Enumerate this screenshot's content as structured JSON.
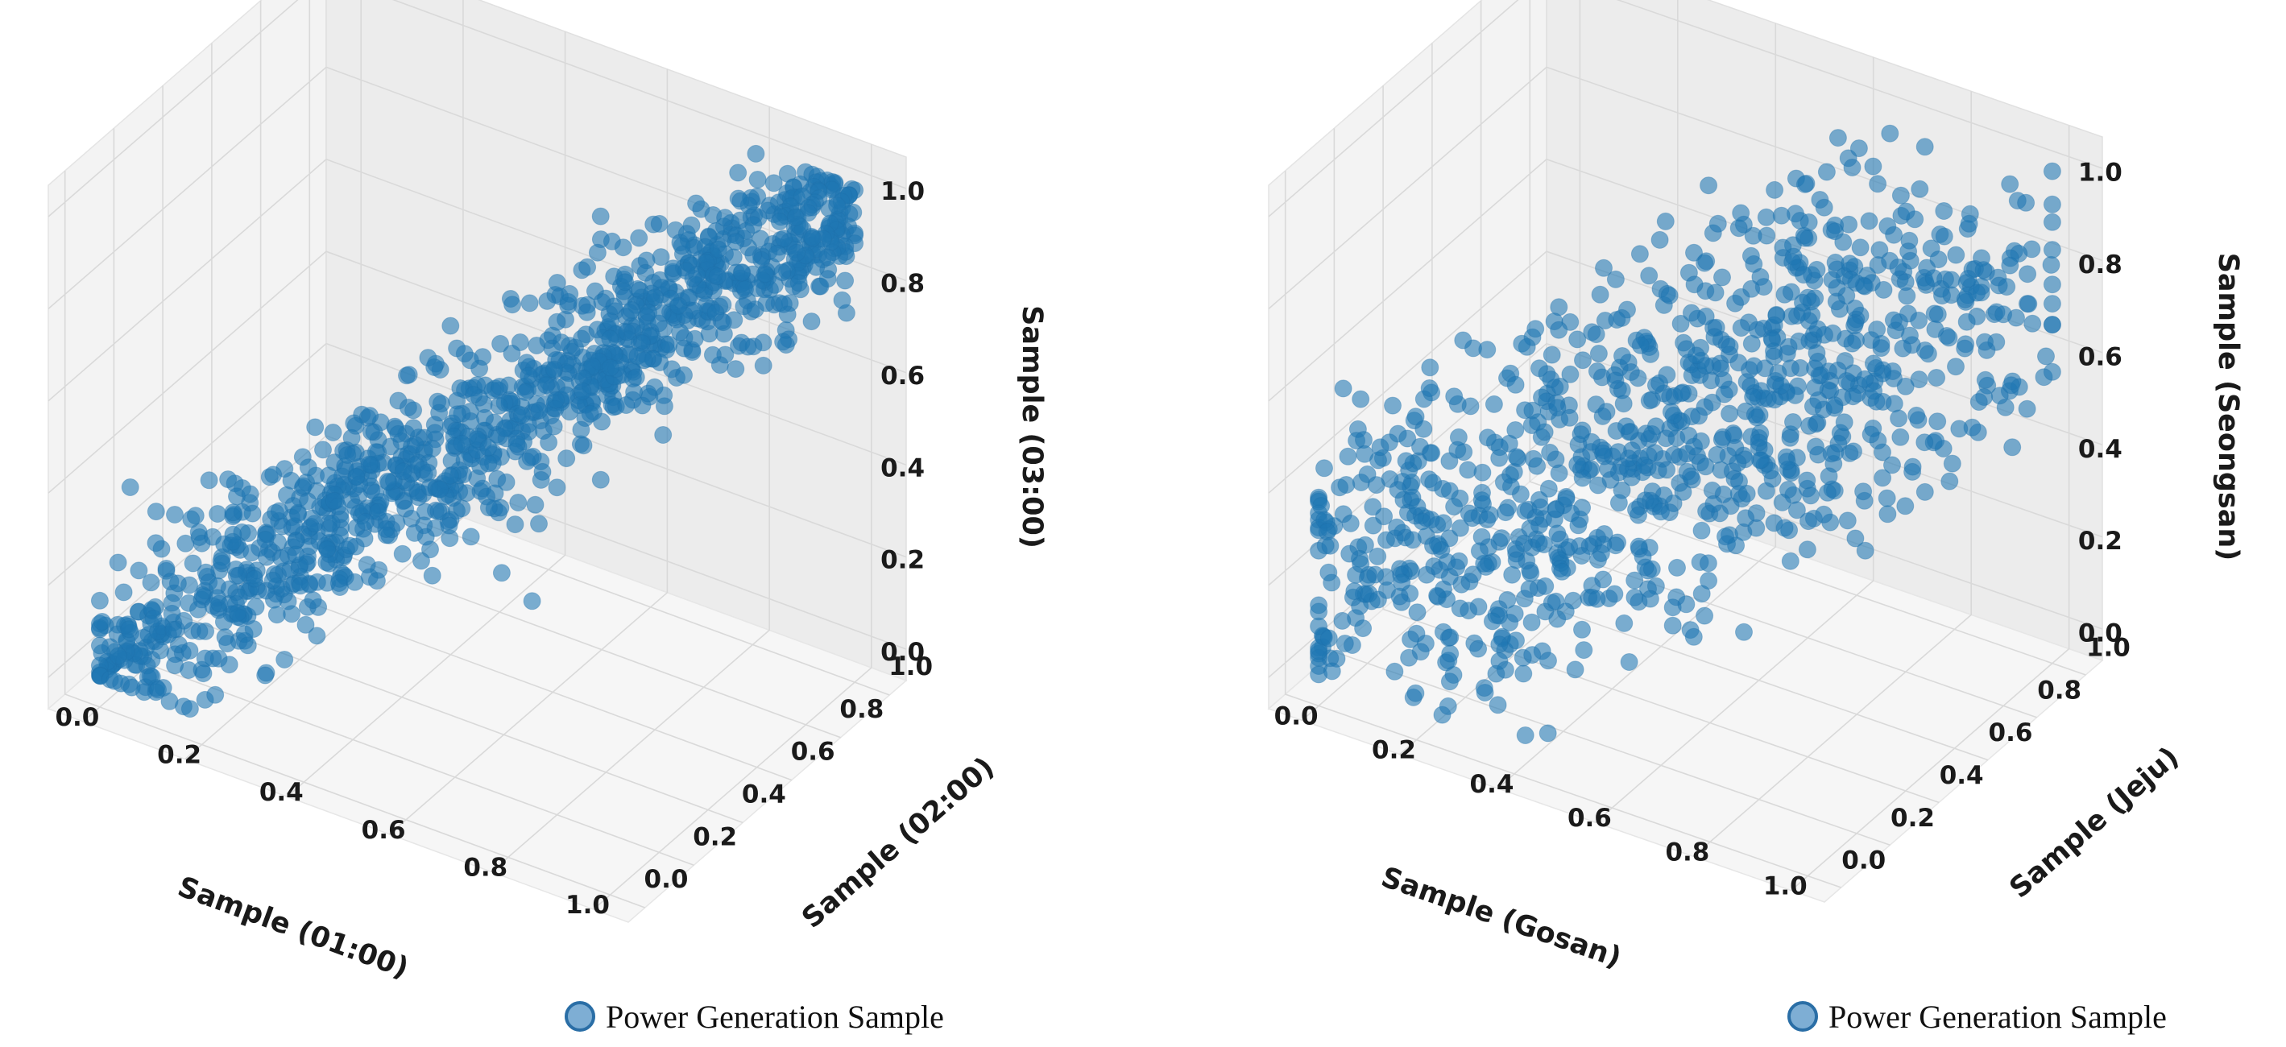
{
  "colors": {
    "point": "#1f77b4",
    "point_edge": "#1f6fa8",
    "grid": "#d9d9d9",
    "pane_left": "#f3f3f3",
    "pane_right": "#ececec",
    "pane_floor": "#f6f6f6",
    "legend_marker_fill": "#7eaed4",
    "legend_marker_edge": "#2a6ea6"
  },
  "chart_data": [
    {
      "type": "scatter",
      "dimensions": 3,
      "series": [
        {
          "name": "Power Generation Sample"
        }
      ],
      "xlabel": "Sample (01:00)",
      "ylabel": "Sample (02:00)",
      "zlabel": "Sample (03:00)",
      "xlim": [
        0,
        1
      ],
      "ylim": [
        0,
        1
      ],
      "zlim": [
        0,
        1
      ],
      "ticks": [
        "0.0",
        "0.2",
        "0.4",
        "0.6",
        "0.8",
        "1.0"
      ],
      "grid": true,
      "legend": "Power Generation Sample",
      "legend_position": "bottom-center",
      "point_count": 1200,
      "correlation": "strong positive (points cluster along the x=y=z diagonal)",
      "distribution": {
        "spread": 0.055,
        "seed": 7,
        "outliers": [
          [
            0.05,
            0.02,
            0.42
          ],
          [
            0.3,
            0.05,
            0.1
          ],
          [
            0.5,
            0.6,
            0.15
          ],
          [
            0.55,
            0.62,
            0.1
          ]
        ]
      }
    },
    {
      "type": "scatter",
      "dimensions": 3,
      "series": [
        {
          "name": "Power Generation Sample"
        }
      ],
      "xlabel": "Sample (Gosan)",
      "ylabel": "Sample (Jeju)",
      "zlabel": "Sample (Seongsan)",
      "xlim": [
        0,
        1
      ],
      "ylim": [
        0,
        1
      ],
      "zlim": [
        0,
        1
      ],
      "ticks": [
        "0.0",
        "0.2",
        "0.4",
        "0.6",
        "0.8",
        "1.0"
      ],
      "grid": true,
      "legend": "Power Generation Sample",
      "legend_position": "bottom-center",
      "point_count": 1000,
      "correlation": "moderate positive (wide diffuse cloud)",
      "distribution": {
        "spread": 0.17,
        "seed": 11,
        "outliers": []
      }
    }
  ]
}
